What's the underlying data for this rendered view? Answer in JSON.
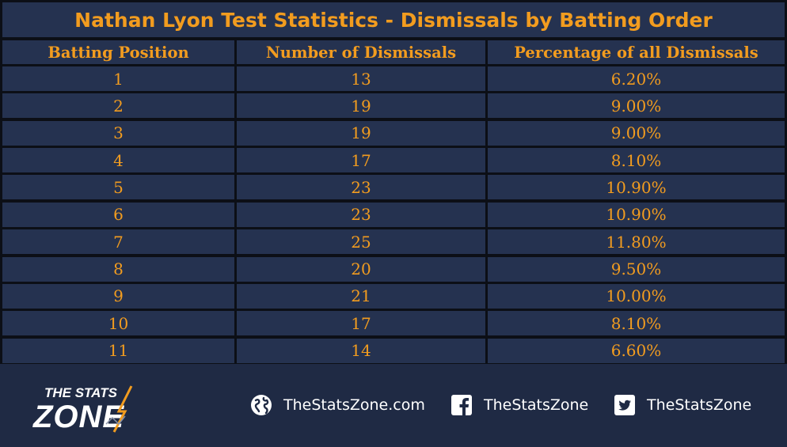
{
  "chart_data": {
    "type": "table",
    "title": "Nathan Lyon Test Statistics - Dismissals by Batting Order",
    "columns": [
      "Batting Position",
      "Number of Dismissals",
      "Percentage of all Dismissals"
    ],
    "rows": [
      [
        "1",
        "13",
        "6.20%"
      ],
      [
        "2",
        "19",
        "9.00%"
      ],
      [
        "3",
        "19",
        "9.00%"
      ],
      [
        "4",
        "17",
        "8.10%"
      ],
      [
        "5",
        "23",
        "10.90%"
      ],
      [
        "6",
        "23",
        "10.90%"
      ],
      [
        "7",
        "25",
        "11.80%"
      ],
      [
        "8",
        "20",
        "9.50%"
      ],
      [
        "9",
        "21",
        "10.00%"
      ],
      [
        "10",
        "17",
        "8.10%"
      ],
      [
        "11",
        "14",
        "6.60%"
      ]
    ]
  },
  "colors": {
    "cell_background": "#253250",
    "grid_lines": "#0c0f16",
    "text_accent": "#f29c1f",
    "footer_background": "#1f2a44",
    "footer_text": "#ffffff"
  },
  "footer": {
    "logo": {
      "line1": "THE STATS",
      "line2": "ZONE"
    },
    "links": [
      {
        "icon": "globe-icon",
        "label": "TheStatsZone.com"
      },
      {
        "icon": "facebook-icon",
        "label": "TheStatsZone"
      },
      {
        "icon": "twitter-icon",
        "label": "TheStatsZone"
      }
    ]
  }
}
